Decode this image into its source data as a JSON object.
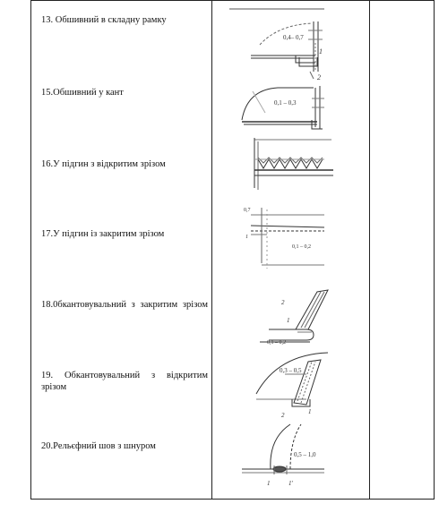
{
  "rows": [
    {
      "label": "13. Обшивний в складну рамку",
      "dims": [
        "0,4– 0,7",
        "1",
        "2"
      ]
    },
    {
      "label": "15.Обшивний у кант",
      "dims": [
        "0,1 – 0,3"
      ]
    },
    {
      "label": "16.У підгин з відкритим зрізом",
      "dims": []
    },
    {
      "label": "17.У підгин із закритим зрізом",
      "dims": [
        "0,7",
        "1",
        "0,1 – 0,2"
      ]
    },
    {
      "label": "18.0бкантовувальний з закритим зрізом",
      "dims": [
        "2",
        "1",
        "0,1 – 0,2"
      ]
    },
    {
      "label": "19. Обкантовувальний з відкритим зрізом",
      "dims": [
        "0,3 – 0,5",
        "2",
        "1"
      ]
    },
    {
      "label": "20.Рельєфний шов з шнуром",
      "dims": [
        "0,5 – 1,0",
        "1",
        "1'"
      ]
    }
  ]
}
